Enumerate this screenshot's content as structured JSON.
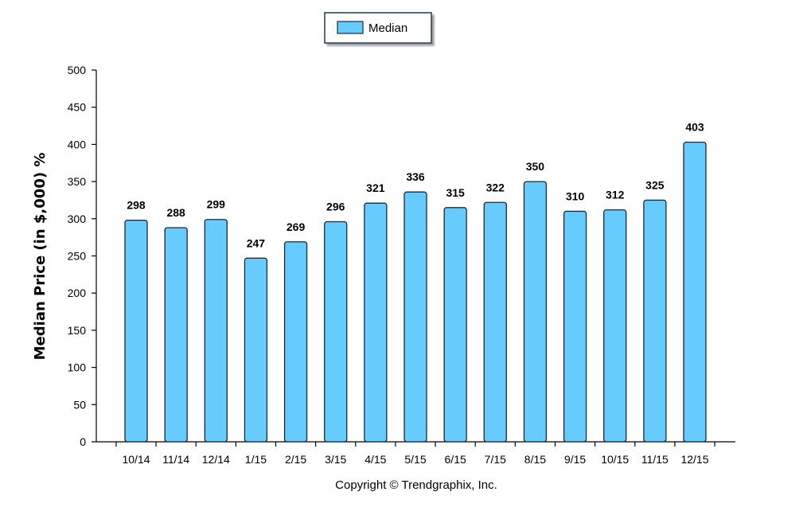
{
  "chart_data": {
    "type": "bar",
    "categories": [
      "10/14",
      "11/14",
      "12/14",
      "1/15",
      "2/15",
      "3/15",
      "4/15",
      "5/15",
      "6/15",
      "7/15",
      "8/15",
      "9/15",
      "10/15",
      "11/15",
      "12/15"
    ],
    "series": [
      {
        "name": "Median",
        "values": [
          298,
          288,
          299,
          247,
          269,
          296,
          321,
          336,
          315,
          322,
          350,
          310,
          312,
          325,
          403
        ],
        "color": "#66ccff"
      }
    ],
    "ylabel": "Median Price (in $,000) %",
    "xlabel": "",
    "ylim": [
      0,
      500
    ],
    "yticks": [
      0,
      50,
      100,
      150,
      200,
      250,
      300,
      350,
      400,
      450,
      500
    ],
    "grid": false,
    "legend_position": "top-center",
    "bar_stroke_color": "#1a2a3a",
    "axis_color": "#000000"
  },
  "footer": {
    "copyright": "Copyright © Trendgraphix, Inc."
  }
}
